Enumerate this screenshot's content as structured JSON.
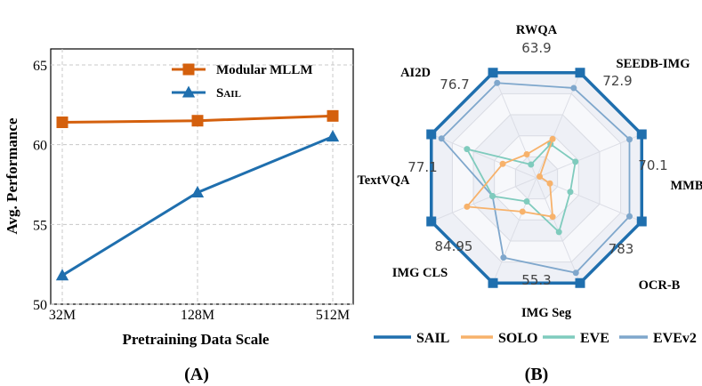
{
  "chart_data": [
    {
      "type": "line",
      "panel_label": "(A)",
      "xlabel": "Pretraining Data Scale",
      "ylabel": "Avg. Performance",
      "categories": [
        "32M",
        "128M",
        "512M"
      ],
      "ylim": [
        50,
        66
      ],
      "yticks": [
        "50",
        "55",
        "60",
        "65"
      ],
      "grid": true,
      "legend_position": "top-right",
      "series": [
        {
          "name": "Modular MLLM",
          "color": "#d4600d",
          "marker": "square",
          "values": [
            61.4,
            61.5,
            61.8
          ]
        },
        {
          "name": "SAIL",
          "color": "#1f6fae",
          "marker": "triangle",
          "values": [
            51.8,
            57.0,
            60.5
          ]
        }
      ]
    },
    {
      "type": "radar",
      "panel_label": "(B)",
      "axes": [
        "RWQA",
        "SEEDB-IMG",
        "MMB",
        "OCR-B",
        "IMG Seg",
        "IMG CLS",
        "TextVQA",
        "AI2D"
      ],
      "axis_max_labels": [
        "63.9",
        "72.9",
        "70.1",
        "783",
        "55.3",
        "84.95",
        "77.1",
        "76.7"
      ],
      "legend_position": "bottom",
      "series": [
        {
          "name": "SAIL",
          "color": "#1f6fae",
          "values": [
            1.0,
            1.0,
            1.0,
            1.0,
            1.0,
            1.0,
            1.0,
            1.0
          ]
        },
        {
          "name": "SOLO",
          "color": "#f7b26b",
          "values": [
            0.35,
            0.0,
            0.1,
            0.35,
            0.3,
            0.65,
            0.3,
            0.2
          ]
        },
        {
          "name": "EVE",
          "color": "#7fcbbd",
          "values": [
            0.3,
            0.35,
            0.3,
            0.5,
            0.2,
            0.4,
            0.65,
            0.1
          ]
        },
        {
          "name": "EVEv2",
          "color": "#7fa7cc",
          "values": [
            0.85,
            0.88,
            0.88,
            0.9,
            0.75,
            0.4,
            0.9,
            0.9
          ]
        }
      ]
    }
  ]
}
